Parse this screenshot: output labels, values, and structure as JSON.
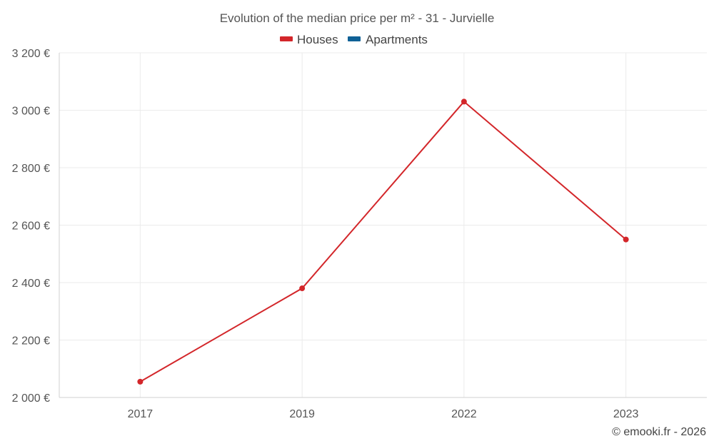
{
  "chart_data": {
    "type": "line",
    "title": "Evolution of the median price per m² - 31 - Jurvielle",
    "categories": [
      "2017",
      "2019",
      "2022",
      "2023"
    ],
    "series": [
      {
        "name": "Houses",
        "color": "#d3262a",
        "values": [
          2055,
          2380,
          3030,
          2550
        ]
      },
      {
        "name": "Apartments",
        "color": "#0f6196",
        "values": [
          null,
          null,
          null,
          null
        ]
      }
    ],
    "y_ticks": [
      2000,
      2200,
      2400,
      2600,
      2800,
      3000,
      3200
    ],
    "y_tick_labels": [
      "2 000 €",
      "2 200 €",
      "2 400 €",
      "2 600 €",
      "2 800 €",
      "3 000 €",
      "3 200 €"
    ],
    "ylim": [
      2000,
      3200
    ],
    "grid": true,
    "legend_position": "top-center",
    "credit": "© emooki.fr - 2026"
  }
}
